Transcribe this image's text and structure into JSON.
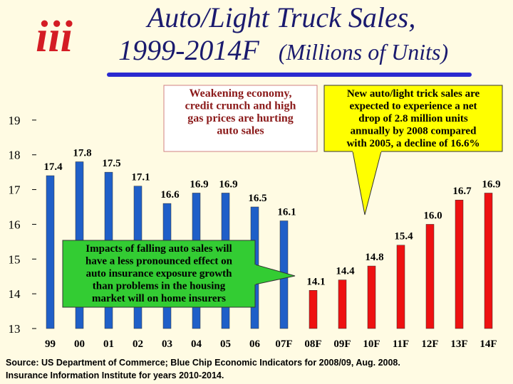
{
  "logo": "iii",
  "chart_data": {
    "type": "bar",
    "title": "Auto/Light Truck Sales,",
    "subtitle": "1999-2014F",
    "units": "(Millions of Units)",
    "categories": [
      "99",
      "00",
      "01",
      "02",
      "03",
      "04",
      "05",
      "06",
      "07F",
      "08F",
      "09F",
      "10F",
      "11F",
      "12F",
      "13F",
      "14F"
    ],
    "values": [
      17.4,
      17.8,
      17.5,
      17.1,
      16.6,
      16.9,
      16.9,
      16.5,
      16.1,
      14.1,
      14.4,
      14.8,
      15.4,
      16.0,
      16.7,
      16.9
    ],
    "value_labels": [
      "17.4",
      "17.8",
      "17.5",
      "17.1",
      "16.6",
      "16.9",
      "16.9",
      "16.5",
      "16.1",
      "14.1",
      "14.4",
      "14.8",
      "15.4",
      "16.0",
      "16.7",
      "16.9"
    ],
    "colors": [
      "#1f5fc8",
      "#1f5fc8",
      "#1f5fc8",
      "#1f5fc8",
      "#1f5fc8",
      "#1f5fc8",
      "#1f5fc8",
      "#1f5fc8",
      "#1f5fc8",
      "#ee1111",
      "#ee1111",
      "#ee1111",
      "#ee1111",
      "#ee1111",
      "#ee1111",
      "#ee1111"
    ],
    "ylim": [
      13,
      20
    ],
    "yticks": [
      13,
      14,
      15,
      16,
      17,
      18,
      19
    ],
    "annotations": [
      [
        "Weakening economy,",
        "credit crunch and high",
        "gas prices are hurting",
        "auto sales"
      ],
      [
        "New auto/light trick sales are",
        "expected to experience a net",
        "drop of 2.8 million units",
        "annually by 2008 compared",
        "with 2005, a decline of 16.6%"
      ],
      [
        "Impacts of falling auto sales will",
        "have a less pronounced effect on",
        "auto insurance exposure growth",
        "than problems in the housing",
        "market will on home insurers"
      ]
    ],
    "source": [
      "Source: US Department of Commerce; Blue Chip Economic Indicators for 2008/09, Aug. 2008.",
      "Insurance Information Institute for years 2010-2014."
    ]
  }
}
